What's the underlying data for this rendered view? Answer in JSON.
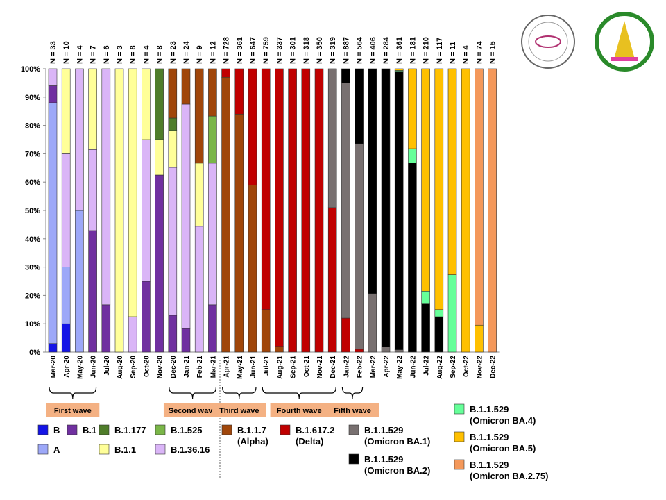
{
  "chart_data": {
    "type": "bar",
    "stacked": true,
    "ylim": [
      0,
      100
    ],
    "yticks": [
      "0%",
      "10%",
      "20%",
      "30%",
      "40%",
      "50%",
      "60%",
      "70%",
      "80%",
      "90%",
      "100%"
    ],
    "categories": [
      "Mar-20",
      "Apr-20",
      "May-20",
      "Jun-20",
      "Jul-20",
      "Aug-20",
      "Sep-20",
      "Oct-20",
      "Nov-20",
      "Dec-20",
      "Jan-21",
      "Feb-21",
      "Mar-21",
      "Apr-21",
      "May-21",
      "Jun-21",
      "Jul-21",
      "Aug-21",
      "Sep-21",
      "Oct-21",
      "Nov-21",
      "Dec-21",
      "Jan-22",
      "Feb-22",
      "Mar-22",
      "Apr-22",
      "May-22",
      "Jun-22",
      "Jul-22",
      "Aug-22",
      "Sep-22",
      "Oct-22",
      "Nov-22",
      "Dec-22"
    ],
    "n_labels": [
      "N = 33",
      "N = 10",
      "N = 4",
      "N = 7",
      "N = 6",
      "N = 3",
      "N = 8",
      "N = 4",
      "N = 8",
      "N = 23",
      "N = 24",
      "N = 9",
      "N = 12",
      "N = 728",
      "N = 361",
      "N = 647",
      "N = 759",
      "N = 337",
      "N = 301",
      "N = 318",
      "N = 350",
      "N = 319",
      "N = 887",
      "N = 564",
      "N = 406",
      "N = 284",
      "N = 361",
      "N = 181",
      "N = 210",
      "N = 117",
      "N = 11",
      "N = 4",
      "N = 74",
      "N = 15"
    ],
    "series": [
      {
        "key": "B",
        "name": "B",
        "color": "#1414e6",
        "values": [
          3,
          10,
          0,
          0,
          0,
          0,
          0,
          0,
          0,
          0,
          0,
          0,
          0,
          0,
          0,
          0,
          0,
          0,
          0,
          0,
          0,
          0,
          0,
          0,
          0,
          0,
          0,
          0,
          0,
          0,
          0,
          0,
          0,
          0
        ]
      },
      {
        "key": "A",
        "name": "A",
        "color": "#9da8f8",
        "values": [
          85,
          20,
          50,
          0,
          0,
          0,
          0,
          0,
          0,
          0,
          0,
          0,
          0,
          0,
          0,
          0,
          0,
          0,
          0,
          0,
          0,
          0,
          0,
          0,
          0,
          0,
          0,
          0,
          0,
          0,
          0,
          0,
          0,
          0
        ]
      },
      {
        "key": "B1",
        "name": "B.1",
        "color": "#7030a0",
        "values": [
          6,
          0,
          0,
          42.9,
          16.7,
          0,
          0,
          25,
          62.5,
          13,
          8.3,
          0,
          16.7,
          0,
          0,
          0,
          0,
          0,
          0,
          0,
          0,
          0,
          0,
          0,
          0,
          0,
          0,
          0,
          0,
          0,
          0,
          0,
          0,
          0
        ]
      },
      {
        "key": "B13616",
        "name": "B.1.36.16",
        "color": "#dab5f7",
        "values": [
          6,
          40,
          50,
          28.6,
          83.3,
          0,
          12.5,
          50,
          0,
          52.2,
          79.2,
          44.4,
          50,
          0,
          0,
          0,
          0,
          0,
          0,
          0,
          0,
          0,
          0,
          0,
          0,
          0,
          0,
          0,
          0,
          0,
          0,
          0,
          0,
          0
        ]
      },
      {
        "key": "B11",
        "name": "B.1.1",
        "color": "#ffff99",
        "values": [
          0,
          30,
          0,
          28.5,
          0,
          100,
          87.5,
          25,
          12.5,
          13,
          0,
          22.3,
          0,
          0,
          0,
          0,
          0,
          0,
          0,
          0,
          0,
          0,
          0,
          0,
          0,
          0,
          0,
          0,
          0,
          0,
          0,
          0,
          0,
          0
        ]
      },
      {
        "key": "B1525",
        "name": "B.1.525",
        "color": "#7ab648",
        "values": [
          0,
          0,
          0,
          0,
          0,
          0,
          0,
          0,
          0,
          0,
          0,
          0,
          16.6,
          0,
          0,
          0,
          0,
          0,
          0,
          0,
          0,
          0,
          0,
          0,
          0,
          0,
          0,
          0,
          0,
          0,
          0,
          0,
          0,
          0
        ]
      },
      {
        "key": "B1177",
        "name": "B.1.177",
        "color": "#4f7d2a",
        "values": [
          0,
          0,
          0,
          0,
          0,
          0,
          0,
          0,
          25,
          4.4,
          0,
          0,
          0,
          0,
          0,
          0,
          0,
          0,
          0,
          0,
          0,
          0,
          0,
          0,
          0,
          0,
          0,
          0,
          0,
          0,
          0,
          0,
          0,
          0
        ]
      },
      {
        "key": "Alpha",
        "name": "B.1.1.7",
        "sub": "(Alpha)",
        "color": "#a0460a",
        "values": [
          0,
          0,
          0,
          0,
          0,
          0,
          0,
          0,
          0,
          17.4,
          12.5,
          33.3,
          16.7,
          97,
          84,
          59,
          15,
          2,
          0,
          0,
          0,
          0,
          0,
          0,
          0,
          0,
          0,
          0,
          0,
          0,
          0,
          0,
          0,
          0
        ]
      },
      {
        "key": "Delta",
        "name": "B.1.617.2",
        "sub": "(Delta)",
        "color": "#c00000",
        "values": [
          0,
          0,
          0,
          0,
          0,
          0,
          0,
          0,
          0,
          0,
          0,
          0,
          0,
          3,
          16,
          41,
          85,
          98,
          100,
          100,
          100,
          51,
          12,
          1,
          0,
          0,
          0,
          0,
          0,
          0,
          0,
          0,
          0,
          0
        ]
      },
      {
        "key": "BA1",
        "name": "B.1.1.529",
        "sub": "(Omicron BA.1)",
        "color": "#787070",
        "values": [
          0,
          0,
          0,
          0,
          0,
          0,
          0,
          0,
          0,
          0,
          0,
          0,
          0,
          0,
          0,
          0,
          0,
          0,
          0,
          0,
          0,
          49,
          83,
          72.5,
          20.6,
          1.8,
          0.8,
          0,
          0,
          0,
          0,
          0,
          0,
          0
        ]
      },
      {
        "key": "BA2",
        "name": "B.1.1.529",
        "sub": "(Omicron BA.2)",
        "color": "#000000",
        "values": [
          0,
          0,
          0,
          0,
          0,
          0,
          0,
          0,
          0,
          0,
          0,
          0,
          0,
          0,
          0,
          0,
          0,
          0,
          0,
          0,
          0,
          0,
          5,
          26.5,
          79.4,
          98.2,
          98.3,
          66.8,
          17,
          12.5,
          0,
          0,
          0,
          0
        ]
      },
      {
        "key": "BA4",
        "name": "B.1.1.529",
        "sub": "(Omicron BA.4)",
        "color": "#66ff99",
        "values": [
          0,
          0,
          0,
          0,
          0,
          0,
          0,
          0,
          0,
          0,
          0,
          0,
          0,
          0,
          0,
          0,
          0,
          0,
          0,
          0,
          0,
          0,
          0,
          0,
          0,
          0,
          0.3,
          5,
          4.5,
          2.5,
          27.3,
          0,
          0,
          0
        ]
      },
      {
        "key": "BA5",
        "name": "B.1.1.529",
        "sub": "(Omicron BA.5)",
        "color": "#ffc000",
        "values": [
          0,
          0,
          0,
          0,
          0,
          0,
          0,
          0,
          0,
          0,
          0,
          0,
          0,
          0,
          0,
          0,
          0,
          0,
          0,
          0,
          0,
          0,
          0,
          0,
          0,
          0,
          0.6,
          28.2,
          78.5,
          85,
          72.7,
          100,
          9.5,
          0
        ]
      },
      {
        "key": "BA275",
        "name": "B.1.1.529",
        "sub": "(Omicron BA.2.75)",
        "color": "#f4985a",
        "values": [
          0,
          0,
          0,
          0,
          0,
          0,
          0,
          0,
          0,
          0,
          0,
          0,
          0,
          0,
          0,
          0,
          0,
          0,
          0,
          0,
          0,
          0,
          0,
          0,
          0,
          0,
          0,
          0,
          0,
          0,
          0,
          0,
          90.5,
          100
        ]
      }
    ],
    "waves": [
      {
        "label": "First wave",
        "from": "Mar-20",
        "to": "Jun-20"
      },
      {
        "label": "Second wave",
        "from": "Dec-20",
        "to": "Mar-21"
      },
      {
        "label": "Third wave",
        "from": "Apr-21",
        "to": "Jun-21"
      },
      {
        "label": "Fourth wave",
        "from": "Jul-21",
        "to": "Dec-21"
      },
      {
        "label": "Fifth wave",
        "from": "Jan-22",
        "to": "Feb-22"
      }
    ],
    "wave_color": "#f4b183",
    "legend_placement": "bottom",
    "grid": false
  },
  "logos": {
    "left": "Center of Excellence in Clinical Virology",
    "right": "Faculty of Medicine Chulalongkorn University"
  }
}
